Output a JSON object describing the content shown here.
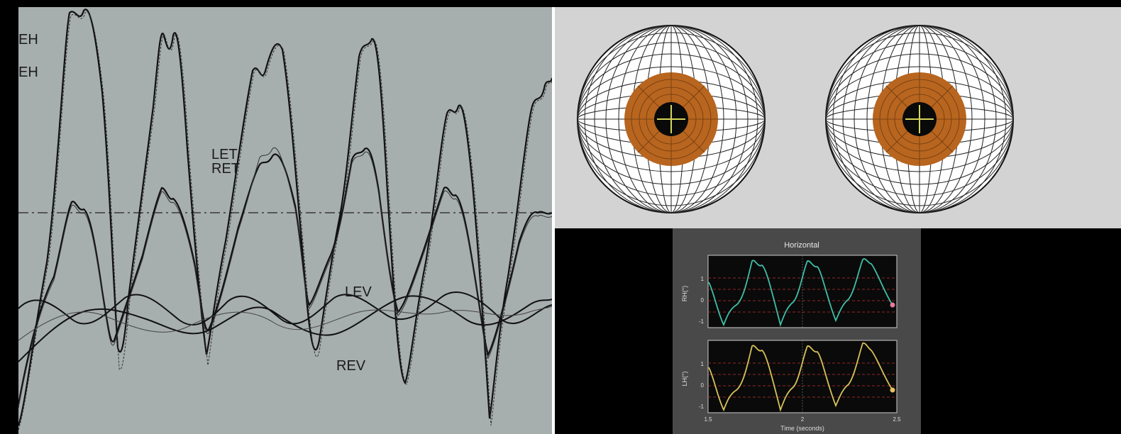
{
  "trace_labels": {
    "eh_1": "EH",
    "eh_2": "EH",
    "let": "LET",
    "ret": "RET",
    "lev": "LEV",
    "rev": "REV"
  },
  "eyes": {
    "left": {
      "iris_color": "#b8651f",
      "pupil_color": "#0a0a0a",
      "crosshair_color": "#d6d65a"
    },
    "right": {
      "iris_color": "#b8651f",
      "pupil_color": "#0a0a0a",
      "crosshair_color": "#d6d65a"
    }
  },
  "plot": {
    "title": "Horizontal",
    "xlabel": "Time (seconds)",
    "x_ticks": [
      "1.5",
      "2",
      "2.5"
    ],
    "top_panel": {
      "ylabel": "RH(°)",
      "y_ticks": [
        "1",
        "0",
        "-1"
      ],
      "line_color": "#3fbfa8",
      "marker_color": "#e87a9a"
    },
    "bottom_panel": {
      "ylabel": "LH(°)",
      "y_ticks": [
        "1",
        "0",
        "-1"
      ],
      "line_color": "#d8c15a",
      "marker_color": "#e8c060"
    }
  }
}
